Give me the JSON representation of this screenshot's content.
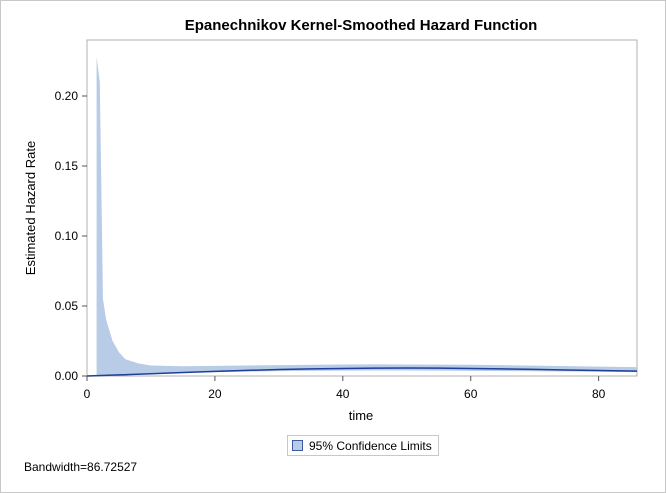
{
  "chart_data": {
    "type": "area",
    "title": "Epanechnikov Kernel-Smoothed Hazard Function",
    "xlabel": "time",
    "ylabel": "Estimated Hazard Rate",
    "xlim": [
      0,
      86
    ],
    "ylim": [
      0,
      0.24
    ],
    "xticks": [
      "0",
      "20",
      "40",
      "60",
      "80"
    ],
    "xtick_values": [
      0,
      20,
      40,
      60,
      80
    ],
    "yticks": [
      "0.00",
      "0.05",
      "0.10",
      "0.15",
      "0.20"
    ],
    "ytick_values": [
      0,
      0.05,
      0.1,
      0.15,
      0.2
    ],
    "grid": false,
    "legend_position": "bottom-center",
    "series": [
      {
        "kind": "band",
        "name": "95% Confidence Limits",
        "color": "#b8cce8",
        "x": [
          1.5,
          1.5,
          2.0,
          2.5,
          3.0,
          4.0,
          5.0,
          6.0,
          8.0,
          10.0,
          15.0,
          20.0,
          30.0,
          40.0,
          45.0,
          50.0,
          60.0,
          70.0,
          80.0,
          86.0
        ],
        "lower": [
          0,
          0,
          0,
          0,
          0,
          0,
          0.0005,
          0.0008,
          0.0012,
          0.0016,
          0.0022,
          0.0028,
          0.0035,
          0.0038,
          0.0039,
          0.0039,
          0.0037,
          0.0034,
          0.003,
          0.0028
        ],
        "upper": [
          0,
          0.228,
          0.21,
          0.055,
          0.04,
          0.025,
          0.017,
          0.012,
          0.009,
          0.0075,
          0.007,
          0.0072,
          0.0078,
          0.0082,
          0.0083,
          0.0082,
          0.008,
          0.0074,
          0.0067,
          0.0063
        ]
      },
      {
        "kind": "line",
        "color": "#1f3f99",
        "x": [
          0,
          5,
          10,
          15,
          20,
          25,
          30,
          35,
          40,
          45,
          50,
          55,
          60,
          65,
          70,
          75,
          80,
          86
        ],
        "values": [
          0.0,
          0.0008,
          0.0016,
          0.0025,
          0.0033,
          0.004,
          0.0046,
          0.0051,
          0.0054,
          0.0056,
          0.0057,
          0.0056,
          0.0054,
          0.0051,
          0.0047,
          0.0043,
          0.0039,
          0.0035
        ]
      }
    ]
  },
  "legend": {
    "label": "95% Confidence Limits",
    "swatch_color": "#b8cce8"
  },
  "footnote": "Bandwidth=86.72527"
}
